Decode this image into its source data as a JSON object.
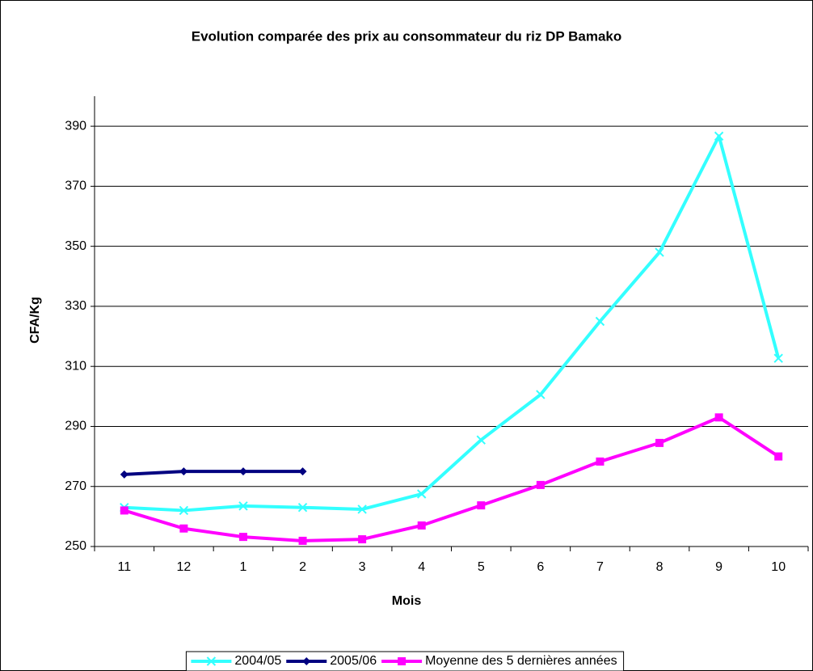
{
  "chart_data": {
    "type": "line",
    "title": "Evolution comparée des prix au consommateur du riz DP Bamako",
    "x_label": "Mois",
    "y_label": "CFA/Kg",
    "categories": [
      "11",
      "12",
      "1",
      "2",
      "3",
      "4",
      "5",
      "6",
      "7",
      "8",
      "9",
      "10"
    ],
    "series": [
      {
        "name": "2004/05",
        "color": "#33ffff",
        "marker": "x",
        "values": [
          263,
          262,
          263.5,
          263,
          262.4,
          267.5,
          285.5,
          300.6,
          325,
          348,
          386.7,
          312.7
        ]
      },
      {
        "name": "2005/06",
        "color": "#000080",
        "marker": "diamond",
        "values": [
          274,
          275,
          275,
          275,
          null,
          null,
          null,
          null,
          null,
          null,
          null,
          null
        ]
      },
      {
        "name": "Moyenne des 5 dernières années",
        "color": "#ff00ff",
        "marker": "square",
        "values": [
          262,
          256,
          253.2,
          251.9,
          252.4,
          257,
          263.7,
          270.5,
          278.3,
          284.5,
          293,
          280
        ]
      }
    ],
    "ylim": [
      250,
      400
    ],
    "yticks": [
      250,
      270,
      290,
      310,
      330,
      350,
      370,
      390
    ],
    "grid": true,
    "legend": "bottom"
  }
}
